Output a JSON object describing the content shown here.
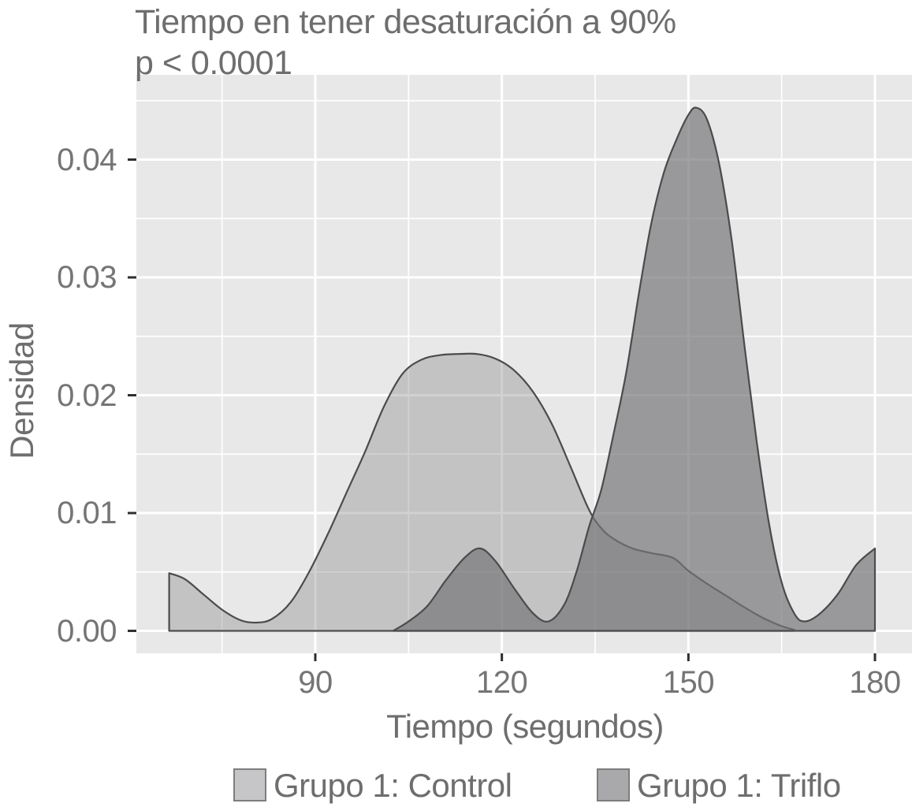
{
  "title": "Tiempo en tener desaturación a 90%",
  "subtitle": "p < 0.0001",
  "colors": {
    "background": "#ffffff",
    "panel": "#e8e8e8",
    "gridline": "#ffffff",
    "curve_stroke": "#4b4b4b",
    "tick_mark": "#2f2f2f",
    "text": "#6e6e6e",
    "tick_label_text": "#757575",
    "control_fill_on_panel": "#c3c3c5",
    "triflo_fill_on_panel": "#9a9a9c",
    "overlap_fill": "#8e8e90"
  },
  "chart_data": {
    "type": "area",
    "subtype": "density",
    "title": "Tiempo en tener desaturación a 90%",
    "subtitle": "p < 0.0001",
    "xlabel": "Tiempo (segundos)",
    "ylabel": "Densidad",
    "xlim": [
      61,
      186
    ],
    "ylim": [
      -0.002,
      0.0472
    ],
    "grid": true,
    "legend_position": "bottom",
    "x_ticks": [
      90,
      120,
      150,
      180
    ],
    "x_tick_labels": [
      "90",
      "120",
      "150",
      "180"
    ],
    "y_ticks": [
      0,
      0.01,
      0.02,
      0.03,
      0.04
    ],
    "y_tick_labels": [
      "0.00",
      "0.01",
      "0.02",
      "0.03",
      "0.04"
    ],
    "x_minor_ticks": [
      75,
      105,
      135,
      165
    ],
    "y_minor_ticks": [
      0.005,
      0.015,
      0.025,
      0.035,
      0.045
    ],
    "series": [
      {
        "name": "Grupo 1: Control",
        "data_name": "control-density-area",
        "fill": "rgba(140,140,143,0.40)",
        "points": [
          [
            66.5,
            0.0049
          ],
          [
            69,
            0.0044
          ],
          [
            72,
            0.0031
          ],
          [
            75,
            0.0018
          ],
          [
            78,
            0.0009
          ],
          [
            80.5,
            0.0007
          ],
          [
            83,
            0.001
          ],
          [
            86,
            0.0024
          ],
          [
            89,
            0.005
          ],
          [
            92,
            0.0082
          ],
          [
            95,
            0.0117
          ],
          [
            98,
            0.0152
          ],
          [
            101,
            0.019
          ],
          [
            104,
            0.0218
          ],
          [
            107,
            0.023
          ],
          [
            110,
            0.0234
          ],
          [
            113,
            0.0235
          ],
          [
            116,
            0.0235
          ],
          [
            119,
            0.0231
          ],
          [
            122,
            0.0221
          ],
          [
            125,
            0.0203
          ],
          [
            128,
            0.0176
          ],
          [
            131,
            0.014
          ],
          [
            134,
            0.0103
          ],
          [
            136,
            0.0087
          ],
          [
            138,
            0.0078
          ],
          [
            141,
            0.007
          ],
          [
            144,
            0.0066
          ],
          [
            147.5,
            0.0062
          ],
          [
            150,
            0.0051
          ],
          [
            153,
            0.004
          ],
          [
            156,
            0.003
          ],
          [
            159,
            0.002
          ],
          [
            162,
            0.0011
          ],
          [
            165,
            0.0004
          ],
          [
            167,
            0.0001
          ]
        ]
      },
      {
        "name": "Grupo 1: Triflo",
        "data_name": "triflo-density-area",
        "fill": "rgba(117,117,120,0.69)",
        "points": [
          [
            102.5,
            0
          ],
          [
            105,
            0.0008
          ],
          [
            108,
            0.0021
          ],
          [
            111,
            0.0043
          ],
          [
            114,
            0.0062
          ],
          [
            116.5,
            0.007
          ],
          [
            119,
            0.0059
          ],
          [
            122,
            0.0036
          ],
          [
            125,
            0.0015
          ],
          [
            127.5,
            0.0008
          ],
          [
            130,
            0.0022
          ],
          [
            132,
            0.005
          ],
          [
            134,
            0.0088
          ],
          [
            136,
            0.012
          ],
          [
            138,
            0.0168
          ],
          [
            140,
            0.0219
          ],
          [
            142,
            0.0285
          ],
          [
            144,
            0.0345
          ],
          [
            146,
            0.0388
          ],
          [
            148,
            0.0416
          ],
          [
            150,
            0.0438
          ],
          [
            151.3,
            0.0444
          ],
          [
            153,
            0.0434
          ],
          [
            155,
            0.0395
          ],
          [
            157,
            0.033
          ],
          [
            159,
            0.0243
          ],
          [
            161,
            0.016
          ],
          [
            163,
            0.009
          ],
          [
            165,
            0.0041
          ],
          [
            167,
            0.0015
          ],
          [
            168.6,
            0.0008
          ],
          [
            171,
            0.0014
          ],
          [
            174,
            0.0031
          ],
          [
            177,
            0.0056
          ],
          [
            180,
            0.007
          ]
        ]
      }
    ]
  },
  "legend": {
    "items": [
      {
        "label": "Grupo 1: Control",
        "swatch": "#c6c6c8"
      },
      {
        "label": "Grupo 1: Triflo",
        "swatch": "#a9a9ab"
      }
    ]
  }
}
